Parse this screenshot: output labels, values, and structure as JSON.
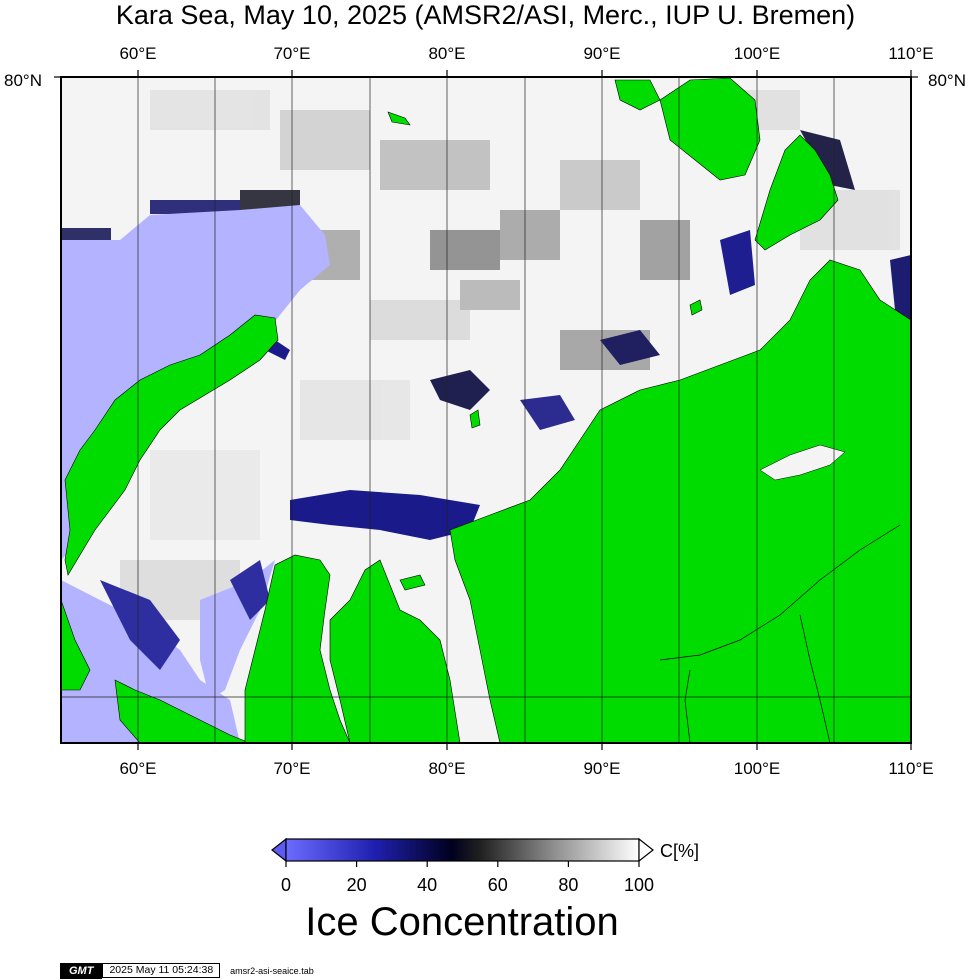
{
  "title": "Kara Sea, May 10, 2025 (AMSR2/ASI, Merc., IUP U. Bremen)",
  "map": {
    "lon_ticks": [
      "60°E",
      "70°E",
      "80°E",
      "90°E",
      "100°E",
      "110°E"
    ],
    "lat_tick": "80°N",
    "colors": {
      "land": "#00dc00",
      "open_water": "#b3b3ff",
      "ice_low": "#5c5cf5",
      "ice_mid": "#00004a",
      "ice_high": "#f5f5f5"
    }
  },
  "colorbar": {
    "unit_label": "C[%]",
    "tick_labels": [
      "0",
      "20",
      "40",
      "60",
      "80",
      "100"
    ],
    "title": "Ice Concentration"
  },
  "footer": {
    "logo": "GMT",
    "timestamp": "2025 May 11 05:24:38",
    "filename": "amsr2-asi-seaice.tab"
  }
}
